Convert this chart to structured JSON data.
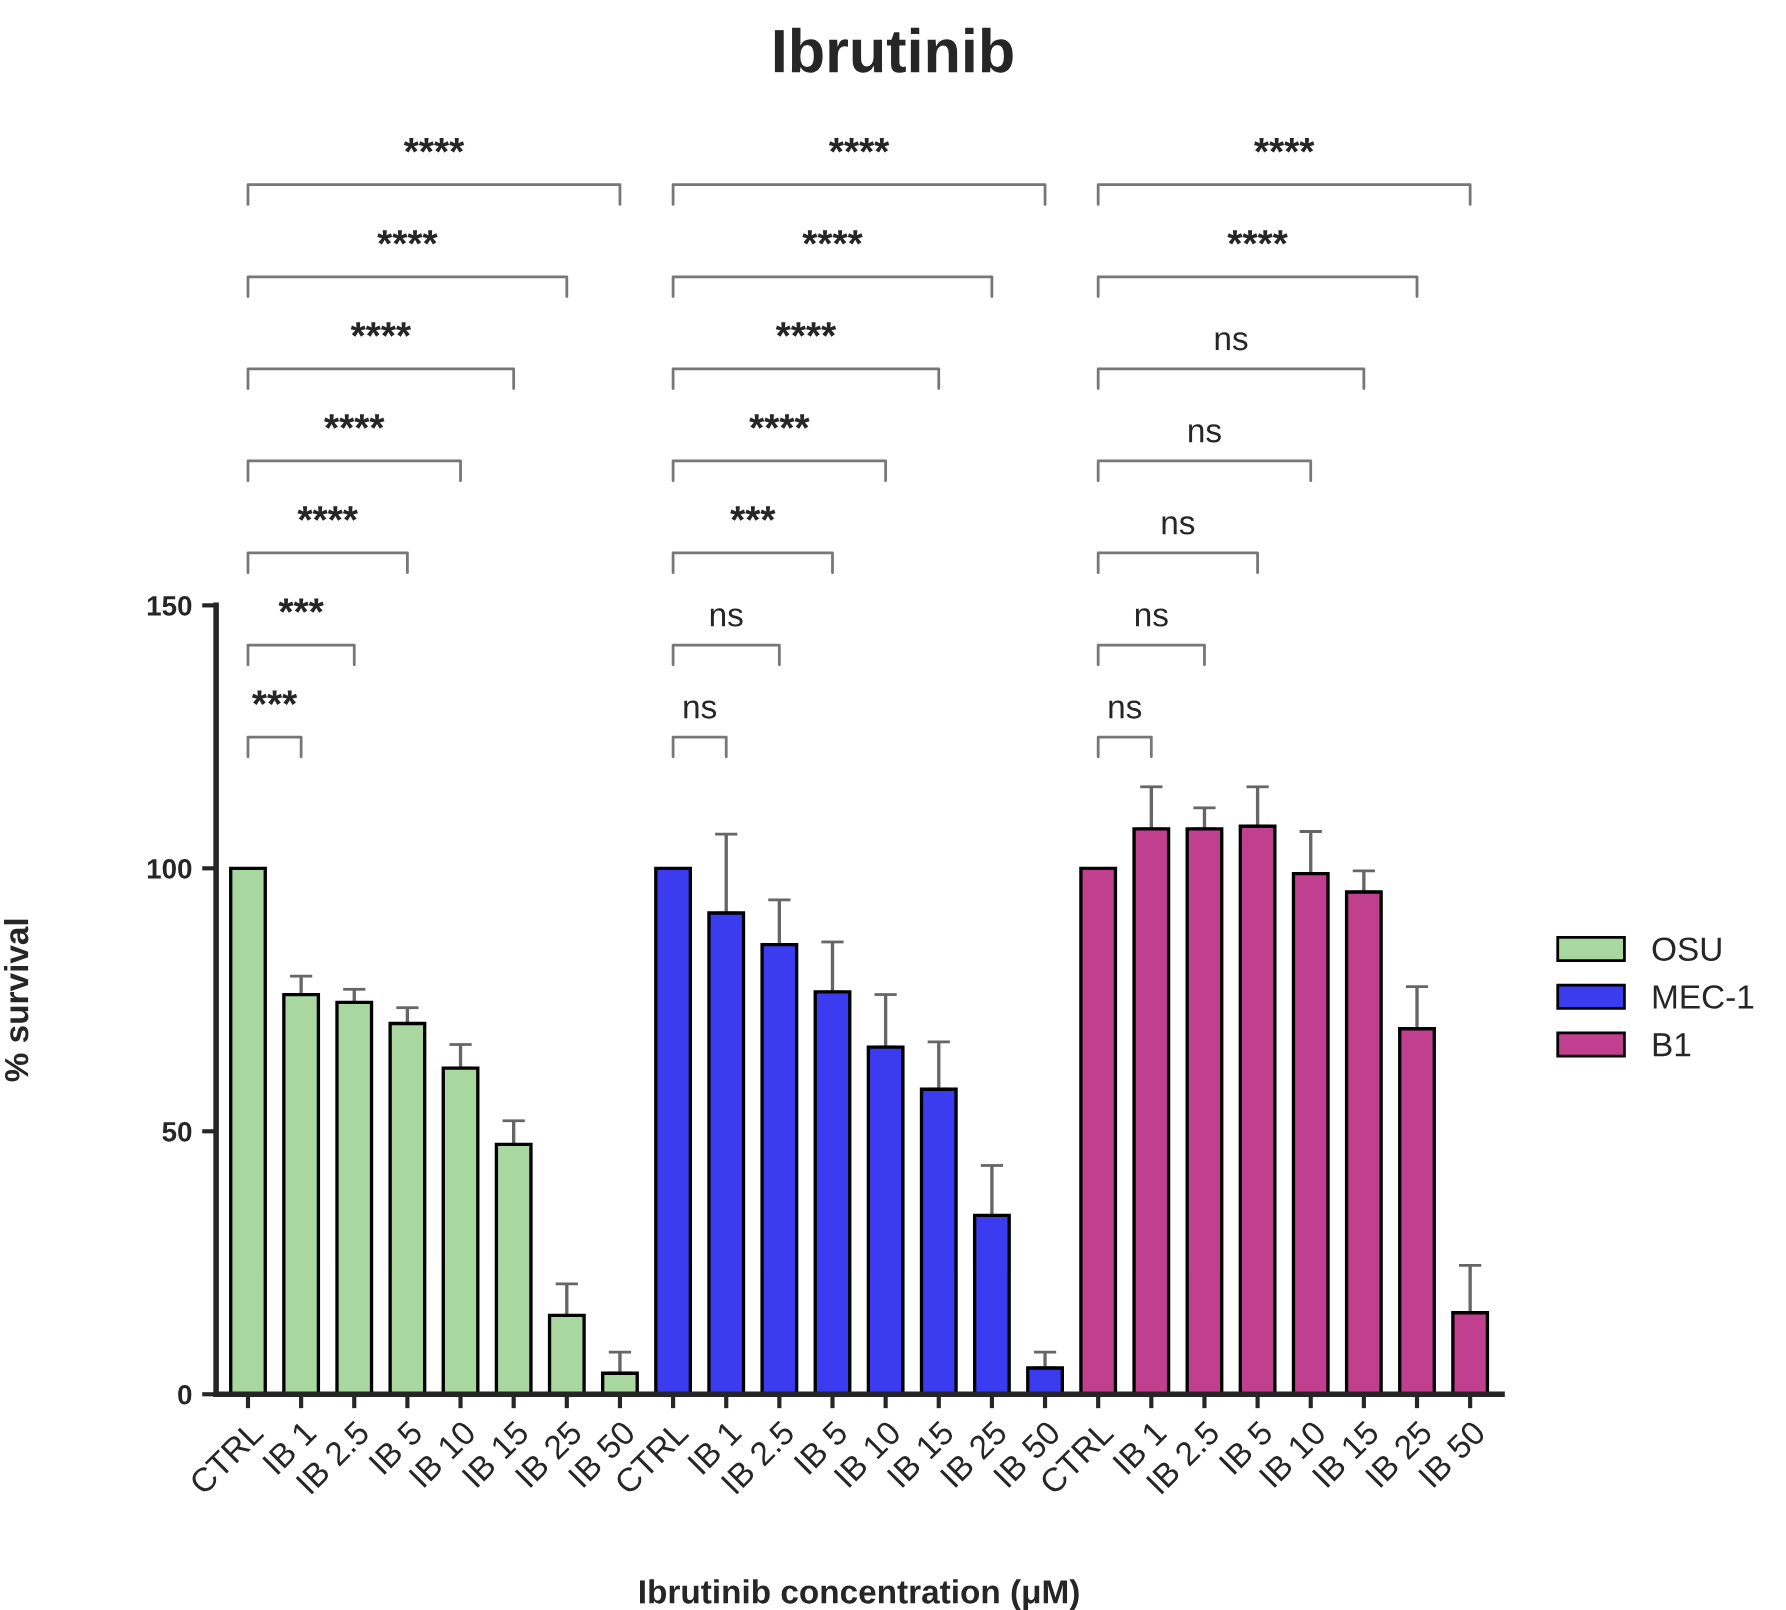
{
  "chart_data": {
    "type": "bar",
    "title": "Ibrutinib",
    "xlabel": "Ibrutinib concentration (μM)",
    "ylabel": "% survival",
    "categories": [
      "CTRL",
      "IB 1",
      "IB 2.5",
      "IB 5",
      "IB 10",
      "IB 15",
      "IB 25",
      "IB 50",
      "CTRL",
      "IB 1",
      "IB 2.5",
      "IB 5",
      "IB 10",
      "IB 15",
      "IB 25",
      "IB 50",
      "CTRL",
      "IB 1",
      "IB 2.5",
      "IB 5",
      "IB 10",
      "IB 15",
      "IB 25",
      "IB 50"
    ],
    "series": [
      {
        "name": "OSU",
        "color": "#a8d8a0",
        "values": [
          100,
          76,
          74.5,
          70.5,
          62,
          47.5,
          15,
          4,
          null,
          null,
          null,
          null,
          null,
          null,
          null,
          null,
          null,
          null,
          null,
          null,
          null,
          null,
          null,
          null
        ],
        "errors": [
          null,
          [
            76,
            79.5
          ],
          [
            74.5,
            77
          ],
          [
            70.5,
            73.5
          ],
          [
            62,
            66.5
          ],
          [
            47.5,
            52
          ],
          [
            15,
            21
          ],
          [
            4,
            8
          ],
          null,
          null,
          null,
          null,
          null,
          null,
          null,
          null,
          null,
          null,
          null,
          null,
          null,
          null,
          null,
          null
        ]
      },
      {
        "name": "MEC-1",
        "color": "#3b3bf0",
        "values": [
          null,
          null,
          null,
          null,
          null,
          null,
          null,
          null,
          100,
          91.5,
          85.5,
          76.5,
          66,
          58,
          34,
          5,
          null,
          null,
          null,
          null,
          null,
          null,
          null,
          null
        ],
        "errors": [
          null,
          null,
          null,
          null,
          null,
          null,
          null,
          null,
          null,
          [
            91.5,
            106.5
          ],
          [
            85.5,
            94
          ],
          [
            76.5,
            86
          ],
          [
            66,
            76
          ],
          [
            58,
            67
          ],
          [
            34,
            43.5
          ],
          [
            5,
            8
          ],
          null,
          null,
          null,
          null,
          null,
          null,
          null,
          null
        ]
      },
      {
        "name": "B1",
        "color": "#c0408f",
        "values": [
          null,
          null,
          null,
          null,
          null,
          null,
          null,
          null,
          null,
          null,
          null,
          null,
          null,
          null,
          null,
          null,
          100,
          107.5,
          107.5,
          108,
          99,
          95.5,
          69.5,
          15.5
        ],
        "errors": [
          null,
          null,
          null,
          null,
          null,
          null,
          null,
          null,
          null,
          null,
          null,
          null,
          null,
          null,
          null,
          null,
          null,
          [
            107.5,
            115.5
          ],
          [
            107.5,
            111.5
          ],
          [
            108,
            115.5
          ],
          [
            99,
            107
          ],
          [
            95.5,
            99.5
          ],
          [
            69.5,
            77.5
          ],
          [
            15.5,
            24.5
          ]
        ]
      }
    ],
    "ylim": [
      0,
      150
    ],
    "yticks": [
      0,
      50,
      100,
      150
    ],
    "grid": false,
    "legend": "right",
    "annotations": [
      "***",
      "***",
      "****",
      "****",
      "****",
      "****",
      "****",
      "ns",
      "ns",
      "***",
      "****",
      "****",
      "****",
      "****",
      "ns",
      "ns",
      "ns",
      "ns",
      "ns",
      "****",
      "****"
    ]
  }
}
